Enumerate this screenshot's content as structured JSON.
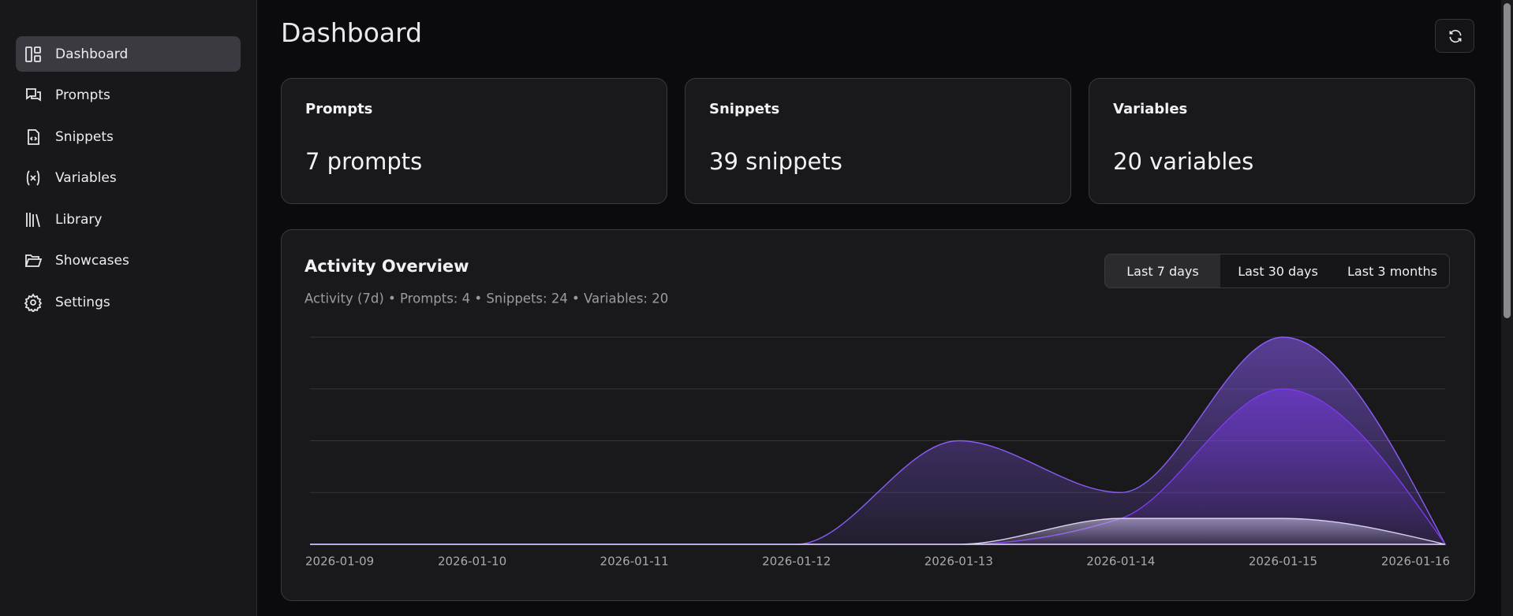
{
  "sidebar": {
    "nav": [
      {
        "label": "Dashboard",
        "active": true
      },
      {
        "label": "Prompts",
        "active": false
      },
      {
        "label": "Snippets",
        "active": false
      },
      {
        "label": "Variables",
        "active": false
      },
      {
        "label": "Library",
        "active": false
      },
      {
        "label": "Showcases",
        "active": false
      },
      {
        "label": "Settings",
        "active": false
      }
    ]
  },
  "header": {
    "title": "Dashboard"
  },
  "cards": [
    {
      "title": "Prompts",
      "value": "7 prompts"
    },
    {
      "title": "Snippets",
      "value": "39 snippets"
    },
    {
      "title": "Variables",
      "value": "20 variables"
    }
  ],
  "chart_data": {
    "type": "area",
    "title": "Activity Overview",
    "subtitle": "Activity (7d) • Prompts: 4 • Snippets: 24 • Variables: 20",
    "ranges": [
      "Last 7 days",
      "Last 30 days",
      "Last 3 months"
    ],
    "active_range": 0,
    "categories": [
      "2026-01-09",
      "2026-01-10",
      "2026-01-11",
      "2026-01-12",
      "2026-01-13",
      "2026-01-14",
      "2026-01-15",
      "2026-01-16"
    ],
    "series": [
      {
        "color": "#8b5cf6",
        "values": [
          0,
          0,
          0,
          0,
          4,
          2,
          8,
          0
        ]
      },
      {
        "color": "#7c3aed",
        "values": [
          0,
          0,
          0,
          0,
          0,
          1,
          6,
          0
        ]
      },
      {
        "color": "#d9d2f2",
        "values": [
          0,
          0,
          0,
          0,
          0,
          1,
          1,
          0
        ]
      }
    ],
    "ylim": [
      0,
      8
    ],
    "grid": [
      0,
      2,
      4,
      6,
      8
    ]
  }
}
